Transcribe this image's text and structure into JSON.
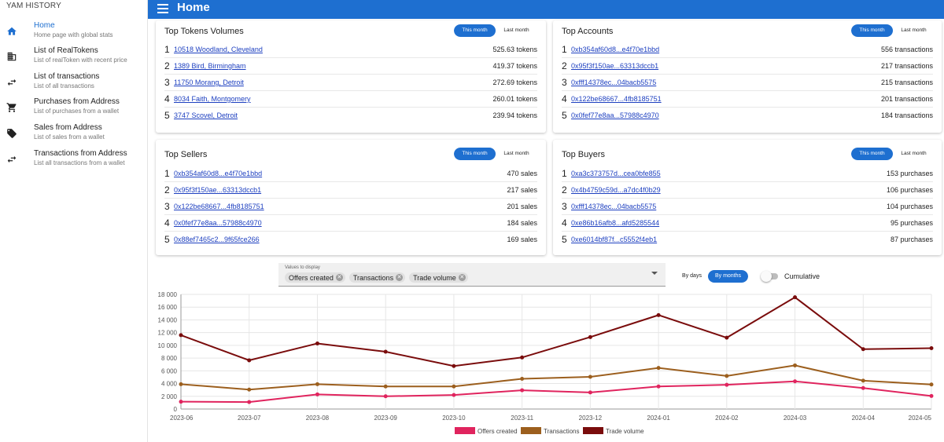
{
  "app": {
    "title": "YAM HISTORY"
  },
  "sidebar": {
    "items": [
      {
        "label": "Home",
        "subtitle": "Home page with global stats",
        "icon": "home-icon",
        "active": true
      },
      {
        "label": "List of RealTokens",
        "subtitle": "List of realToken with recent price",
        "icon": "building-icon"
      },
      {
        "label": "List of transactions",
        "subtitle": "List of all transactions",
        "icon": "swap-icon"
      },
      {
        "label": "Purchases from Address",
        "subtitle": "List of purchases from a wallet",
        "icon": "cart-icon"
      },
      {
        "label": "Sales from Address",
        "subtitle": "List of sales from a wallet",
        "icon": "tag-icon"
      },
      {
        "label": "Transactions from Address",
        "subtitle": "List all transactions from a wallet",
        "icon": "swap-icon"
      }
    ]
  },
  "header": {
    "title": "Home"
  },
  "toggle": {
    "this_month": "This month",
    "last_month": "Last month"
  },
  "cards": {
    "top_tokens": {
      "title": "Top Tokens Volumes",
      "rows": [
        {
          "rank": "1",
          "name": "10518 Woodland, Cleveland",
          "value": "525.63 tokens"
        },
        {
          "rank": "2",
          "name": "1389 Bird, Birmingham",
          "value": "419.37 tokens"
        },
        {
          "rank": "3",
          "name": "11750 Morang, Detroit",
          "value": "272.69 tokens"
        },
        {
          "rank": "4",
          "name": "8034 Faith, Montgomery",
          "value": "260.01 tokens"
        },
        {
          "rank": "5",
          "name": "3747 Scovel, Detroit",
          "value": "239.94 tokens"
        }
      ]
    },
    "top_accounts": {
      "title": "Top Accounts",
      "rows": [
        {
          "rank": "1",
          "name": "0xb354af60d8...e4f70e1bbd",
          "value": "556 transactions"
        },
        {
          "rank": "2",
          "name": "0x95f3f150ae...63313dccb1",
          "value": "217 transactions"
        },
        {
          "rank": "3",
          "name": "0xfff14378ec...04bacb5575",
          "value": "215 transactions"
        },
        {
          "rank": "4",
          "name": "0x122be68667...4fb8185751",
          "value": "201 transactions"
        },
        {
          "rank": "5",
          "name": "0x0fef77e8aa...57988c4970",
          "value": "184 transactions"
        }
      ]
    },
    "top_sellers": {
      "title": "Top Sellers",
      "rows": [
        {
          "rank": "1",
          "name": "0xb354af60d8...e4f70e1bbd",
          "value": "470 sales"
        },
        {
          "rank": "2",
          "name": "0x95f3f150ae...63313dccb1",
          "value": "217 sales"
        },
        {
          "rank": "3",
          "name": "0x122be68667...4fb8185751",
          "value": "201 sales"
        },
        {
          "rank": "4",
          "name": "0x0fef77e8aa...57988c4970",
          "value": "184 sales"
        },
        {
          "rank": "5",
          "name": "0x88ef7465c2...9f65fce266",
          "value": "169 sales"
        }
      ]
    },
    "top_buyers": {
      "title": "Top Buyers",
      "rows": [
        {
          "rank": "1",
          "name": "0xa3c373757d...cea0bfe855",
          "value": "153 purchases"
        },
        {
          "rank": "2",
          "name": "0x4b4759c59d...a7dc4f0b29",
          "value": "106 purchases"
        },
        {
          "rank": "3",
          "name": "0xfff14378ec...04bacb5575",
          "value": "104 purchases"
        },
        {
          "rank": "4",
          "name": "0xe86b16afb8...afd5285544",
          "value": "95 purchases"
        },
        {
          "rank": "5",
          "name": "0xe6014bf87f...c5552f4eb1",
          "value": "87 purchases"
        }
      ]
    }
  },
  "filters": {
    "select_label": "Values to display",
    "chips": [
      "Offers created",
      "Transactions",
      "Trade volume"
    ],
    "by_days": "By days",
    "by_months": "By months",
    "cumulative": "Cumulative",
    "cumulative_on": false
  },
  "chart_data": {
    "type": "line",
    "x": [
      "2023-06",
      "2023-07",
      "2023-08",
      "2023-09",
      "2023-10",
      "2023-11",
      "2023-12",
      "2024-01",
      "2024-02",
      "2024-03",
      "2024-04",
      "2024-05"
    ],
    "y_ticks": [
      "0",
      "2 000",
      "4 000",
      "6 000",
      "8 000",
      "10 000",
      "12 000",
      "14 000",
      "16 000",
      "18 000"
    ],
    "ylim": [
      0,
      18000
    ],
    "grid": true,
    "legend_position": "bottom",
    "series": [
      {
        "name": "Offers created",
        "color": "#e0245e",
        "values": [
          1150,
          1100,
          2300,
          2000,
          2200,
          2950,
          2600,
          3550,
          3800,
          4350,
          3300,
          2050
        ]
      },
      {
        "name": "Transactions",
        "color": "#9c5f1e",
        "values": [
          3900,
          3050,
          3900,
          3550,
          3550,
          4750,
          5050,
          6450,
          5200,
          6850,
          4450,
          3850
        ]
      },
      {
        "name": "Trade volume",
        "color": "#7a0c0c",
        "values": [
          11600,
          7650,
          10300,
          9000,
          6750,
          8100,
          11300,
          14750,
          11200,
          17550,
          9400,
          9550
        ]
      }
    ]
  }
}
